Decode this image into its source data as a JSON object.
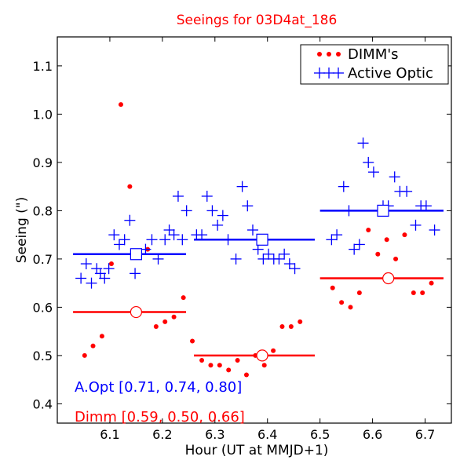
{
  "chart_data": {
    "type": "scatter",
    "title": "Seeings for 03D4at_186",
    "xlabel": "Hour (UT at MMJD+1)",
    "ylabel": "Seeing (\")",
    "xlim": [
      6.0,
      6.75
    ],
    "ylim": [
      0.36,
      1.16
    ],
    "x_ticks": [
      6.1,
      6.2,
      6.3,
      6.4,
      6.5,
      6.6,
      6.7
    ],
    "x_tick_labels": [
      "6.1",
      "6.2",
      "6.3",
      "6.4",
      "6.5",
      "6.6",
      "6.7"
    ],
    "y_ticks": [
      0.4,
      0.5,
      0.6,
      0.7,
      0.8,
      0.9,
      1.0,
      1.1
    ],
    "y_tick_labels": [
      "0.4",
      "0.5",
      "0.6",
      "0.7",
      "0.8",
      "0.9",
      "1.0",
      "1.1"
    ],
    "legend": {
      "position": "top-right",
      "entries": [
        "DIMM's",
        "Active Optic"
      ]
    },
    "series": [
      {
        "name": "DIMM's",
        "marker": "dot",
        "color": "#ff0000",
        "points": [
          [
            6.052,
            0.5
          ],
          [
            6.068,
            0.52
          ],
          [
            6.085,
            0.54
          ],
          [
            6.103,
            0.69
          ],
          [
            6.121,
            1.02
          ],
          [
            6.138,
            0.85
          ],
          [
            6.172,
            0.72
          ],
          [
            6.188,
            0.56
          ],
          [
            6.205,
            0.57
          ],
          [
            6.222,
            0.58
          ],
          [
            6.24,
            0.62
          ],
          [
            6.257,
            0.53
          ],
          [
            6.275,
            0.49
          ],
          [
            6.292,
            0.48
          ],
          [
            6.309,
            0.48
          ],
          [
            6.326,
            0.47
          ],
          [
            6.343,
            0.49
          ],
          [
            6.36,
            0.46
          ],
          [
            6.377,
            0.5
          ],
          [
            6.394,
            0.48
          ],
          [
            6.411,
            0.51
          ],
          [
            6.428,
            0.56
          ],
          [
            6.445,
            0.56
          ],
          [
            6.462,
            0.57
          ],
          [
            6.524,
            0.64
          ],
          [
            6.541,
            0.61
          ],
          [
            6.558,
            0.6
          ],
          [
            6.575,
            0.63
          ],
          [
            6.592,
            0.76
          ],
          [
            6.61,
            0.71
          ],
          [
            6.627,
            0.74
          ],
          [
            6.644,
            0.7
          ],
          [
            6.661,
            0.75
          ],
          [
            6.678,
            0.63
          ],
          [
            6.695,
            0.63
          ],
          [
            6.712,
            0.65
          ]
        ]
      },
      {
        "name": "Active Optic",
        "marker": "plus",
        "color": "#0000ff",
        "points": [
          [
            6.045,
            0.66
          ],
          [
            6.055,
            0.69
          ],
          [
            6.065,
            0.65
          ],
          [
            6.075,
            0.68
          ],
          [
            6.082,
            0.67
          ],
          [
            6.09,
            0.66
          ],
          [
            6.098,
            0.68
          ],
          [
            6.108,
            0.75
          ],
          [
            6.118,
            0.73
          ],
          [
            6.128,
            0.74
          ],
          [
            6.138,
            0.78
          ],
          [
            6.148,
            0.67
          ],
          [
            6.158,
            0.71
          ],
          [
            6.168,
            0.72
          ],
          [
            6.18,
            0.74
          ],
          [
            6.192,
            0.7
          ],
          [
            6.205,
            0.74
          ],
          [
            6.213,
            0.76
          ],
          [
            6.222,
            0.75
          ],
          [
            6.23,
            0.83
          ],
          [
            6.238,
            0.74
          ],
          [
            6.246,
            0.8
          ],
          [
            6.265,
            0.75
          ],
          [
            6.275,
            0.75
          ],
          [
            6.285,
            0.83
          ],
          [
            6.295,
            0.8
          ],
          [
            6.305,
            0.77
          ],
          [
            6.315,
            0.79
          ],
          [
            6.325,
            0.74
          ],
          [
            6.34,
            0.7
          ],
          [
            6.352,
            0.85
          ],
          [
            6.362,
            0.81
          ],
          [
            6.372,
            0.76
          ],
          [
            6.382,
            0.72
          ],
          [
            6.392,
            0.7
          ],
          [
            6.402,
            0.71
          ],
          [
            6.412,
            0.7
          ],
          [
            6.422,
            0.7
          ],
          [
            6.432,
            0.71
          ],
          [
            6.442,
            0.69
          ],
          [
            6.452,
            0.68
          ],
          [
            6.522,
            0.74
          ],
          [
            6.532,
            0.75
          ],
          [
            6.545,
            0.85
          ],
          [
            6.555,
            0.8
          ],
          [
            6.565,
            0.72
          ],
          [
            6.575,
            0.73
          ],
          [
            6.582,
            0.94
          ],
          [
            6.592,
            0.9
          ],
          [
            6.602,
            0.88
          ],
          [
            6.61,
            0.8
          ],
          [
            6.62,
            0.81
          ],
          [
            6.63,
            0.81
          ],
          [
            6.642,
            0.87
          ],
          [
            6.652,
            0.84
          ],
          [
            6.665,
            0.84
          ],
          [
            6.682,
            0.77
          ],
          [
            6.692,
            0.81
          ],
          [
            6.702,
            0.81
          ],
          [
            6.718,
            0.76
          ]
        ]
      }
    ],
    "segments": [
      {
        "series": "Active Optic",
        "color": "#0000ff",
        "x_start": 6.03,
        "x_end": 6.245,
        "value": 0.71,
        "marker_x": 6.15,
        "marker": "square"
      },
      {
        "series": "Active Optic",
        "color": "#0000ff",
        "x_start": 6.26,
        "x_end": 6.49,
        "value": 0.74,
        "marker_x": 6.39,
        "marker": "square"
      },
      {
        "series": "Active Optic",
        "color": "#0000ff",
        "x_start": 6.5,
        "x_end": 6.735,
        "value": 0.8,
        "marker_x": 6.62,
        "marker": "square"
      },
      {
        "series": "DIMM's",
        "color": "#ff0000",
        "x_start": 6.03,
        "x_end": 6.245,
        "value": 0.59,
        "marker_x": 6.15,
        "marker": "circle"
      },
      {
        "series": "DIMM's",
        "color": "#ff0000",
        "x_start": 6.26,
        "x_end": 6.49,
        "value": 0.5,
        "marker_x": 6.39,
        "marker": "circle"
      },
      {
        "series": "DIMM's",
        "color": "#ff0000",
        "x_start": 6.5,
        "x_end": 6.735,
        "value": 0.66,
        "marker_x": 6.63,
        "marker": "circle"
      }
    ],
    "annotations": [
      {
        "text": "A.Opt [0.71, 0.74, 0.80]",
        "color": "#0000ff"
      },
      {
        "text": "Dimm [0.59, 0.50, 0.66]",
        "color": "#ff0000"
      }
    ]
  }
}
